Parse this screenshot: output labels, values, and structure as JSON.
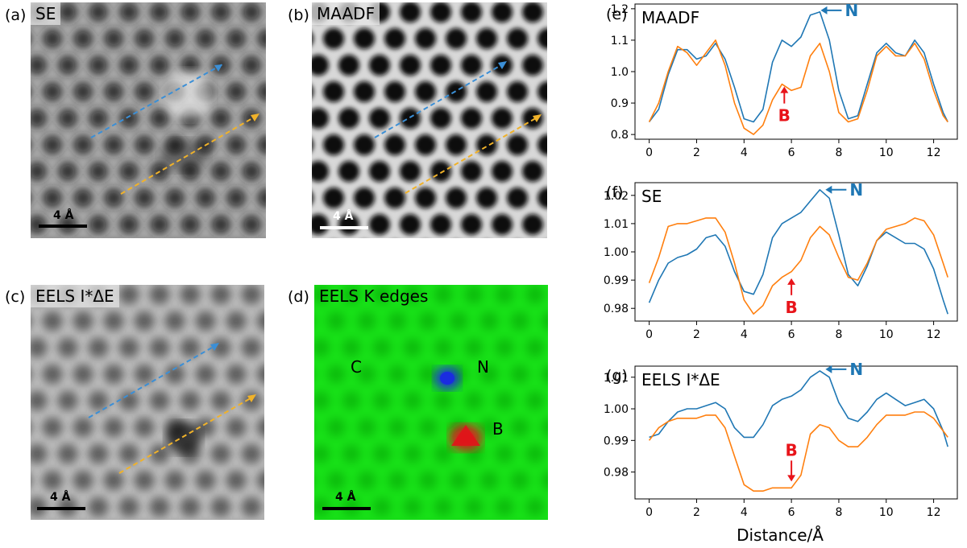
{
  "panels": {
    "a": {
      "letter": "(a)",
      "label": "SE",
      "scale": "4 Å"
    },
    "b": {
      "letter": "(b)",
      "label": "MAADF",
      "scale": "4 Å"
    },
    "c": {
      "letter": "(c)",
      "label": "EELS I*ΔE",
      "scale": "4 Å"
    },
    "d": {
      "letter": "(d)",
      "label": "EELS K edges",
      "scale": "4 Å",
      "elements": [
        "C",
        "N",
        "B"
      ]
    }
  },
  "colors": {
    "blue": "#1f77b4",
    "orange": "#ff7f0e",
    "annot_N": "#1f77b4",
    "annot_B": "#e8141a",
    "green": "#16e016",
    "dot_red": "#e0141a",
    "dot_blue": "#1a2ce0"
  },
  "chart_data": [
    {
      "type": "line",
      "letter": "(e)",
      "title": "MAADF",
      "xlim": [
        -0.6,
        13.0
      ],
      "ylim": [
        0.785,
        1.215
      ],
      "xticks": [
        0,
        2,
        4,
        6,
        8,
        10,
        12
      ],
      "yticks": [
        0.8,
        0.9,
        1.0,
        1.1,
        1.2
      ],
      "ytick_labels": [
        "0.8",
        "0.9",
        "1.0",
        "1.1",
        "1.2"
      ],
      "annotations": [
        {
          "text": "N",
          "color": "blue",
          "arrow": "left",
          "x": 7.1,
          "y": 1.195
        },
        {
          "text": "B",
          "color": "red",
          "arrow": "up",
          "x": 5.7,
          "y": 0.96
        }
      ],
      "series": [
        {
          "color": "blue",
          "x": [
            0,
            0.4,
            0.8,
            1.2,
            1.6,
            2.0,
            2.4,
            2.8,
            3.2,
            3.6,
            4.0,
            4.4,
            4.8,
            5.2,
            5.6,
            6.0,
            6.4,
            6.8,
            7.2,
            7.6,
            8.0,
            8.4,
            8.8,
            9.2,
            9.6,
            10.0,
            10.4,
            10.8,
            11.2,
            11.6,
            12.0,
            12.4,
            12.6
          ],
          "y": [
            0.84,
            0.88,
            0.99,
            1.07,
            1.07,
            1.04,
            1.05,
            1.09,
            1.04,
            0.95,
            0.85,
            0.84,
            0.88,
            1.03,
            1.1,
            1.08,
            1.11,
            1.18,
            1.19,
            1.1,
            0.94,
            0.85,
            0.86,
            0.96,
            1.06,
            1.09,
            1.06,
            1.05,
            1.1,
            1.06,
            0.96,
            0.87,
            0.84
          ]
        },
        {
          "color": "orange",
          "x": [
            0,
            0.4,
            0.8,
            1.2,
            1.6,
            2.0,
            2.4,
            2.8,
            3.2,
            3.6,
            4.0,
            4.4,
            4.8,
            5.2,
            5.6,
            6.0,
            6.4,
            6.8,
            7.2,
            7.6,
            8.0,
            8.4,
            8.8,
            9.2,
            9.6,
            10.0,
            10.4,
            10.8,
            11.2,
            11.6,
            12.0,
            12.4,
            12.6
          ],
          "y": [
            0.84,
            0.9,
            1.0,
            1.08,
            1.06,
            1.02,
            1.06,
            1.1,
            1.02,
            0.9,
            0.82,
            0.8,
            0.83,
            0.91,
            0.96,
            0.94,
            0.95,
            1.05,
            1.09,
            1.0,
            0.87,
            0.84,
            0.85,
            0.94,
            1.05,
            1.08,
            1.05,
            1.05,
            1.09,
            1.04,
            0.94,
            0.86,
            0.84
          ]
        }
      ]
    },
    {
      "type": "line",
      "letter": "(f)",
      "title": "SE",
      "xlim": [
        -0.6,
        13.0
      ],
      "ylim": [
        0.9755,
        1.0245
      ],
      "xticks": [
        0,
        2,
        4,
        6,
        8,
        10,
        12
      ],
      "yticks": [
        0.98,
        0.99,
        1.0,
        1.01,
        1.02
      ],
      "ytick_labels": [
        "0.98",
        "0.99",
        "1.00",
        "1.01",
        "1.02"
      ],
      "annotations": [
        {
          "text": "N",
          "color": "blue",
          "arrow": "left",
          "x": 7.3,
          "y": 1.022
        },
        {
          "text": "B",
          "color": "red",
          "arrow": "up",
          "x": 6.0,
          "y": 0.9915
        }
      ],
      "series": [
        {
          "color": "blue",
          "x": [
            0,
            0.4,
            0.8,
            1.2,
            1.6,
            2.0,
            2.4,
            2.8,
            3.2,
            3.6,
            4.0,
            4.4,
            4.8,
            5.2,
            5.6,
            6.0,
            6.4,
            6.8,
            7.2,
            7.6,
            8.0,
            8.4,
            8.8,
            9.2,
            9.6,
            10.0,
            10.4,
            10.8,
            11.2,
            11.6,
            12.0,
            12.4,
            12.6
          ],
          "y": [
            0.982,
            0.99,
            0.996,
            0.998,
            0.999,
            1.001,
            1.005,
            1.006,
            1.002,
            0.993,
            0.986,
            0.985,
            0.992,
            1.005,
            1.01,
            1.012,
            1.014,
            1.018,
            1.022,
            1.019,
            1.006,
            0.992,
            0.988,
            0.995,
            1.004,
            1.007,
            1.005,
            1.003,
            1.003,
            1.001,
            0.994,
            0.983,
            0.978
          ]
        },
        {
          "color": "orange",
          "x": [
            0,
            0.4,
            0.8,
            1.2,
            1.6,
            2.0,
            2.4,
            2.8,
            3.2,
            3.6,
            4.0,
            4.4,
            4.8,
            5.2,
            5.6,
            6.0,
            6.4,
            6.8,
            7.2,
            7.6,
            8.0,
            8.4,
            8.8,
            9.2,
            9.6,
            10.0,
            10.4,
            10.8,
            11.2,
            11.6,
            12.0,
            12.4,
            12.6
          ],
          "y": [
            0.989,
            0.998,
            1.009,
            1.01,
            1.01,
            1.011,
            1.012,
            1.012,
            1.007,
            0.996,
            0.983,
            0.978,
            0.981,
            0.988,
            0.991,
            0.993,
            0.997,
            1.005,
            1.009,
            1.006,
            0.998,
            0.991,
            0.99,
            0.996,
            1.004,
            1.008,
            1.009,
            1.01,
            1.012,
            1.011,
            1.006,
            0.996,
            0.991
          ]
        }
      ]
    },
    {
      "type": "line",
      "letter": "(g)",
      "title": "EELS I*ΔE",
      "xlabel": "Distance/Å",
      "xlim": [
        -0.6,
        13.0
      ],
      "ylim": [
        0.9715,
        1.0135
      ],
      "xticks": [
        0,
        2,
        4,
        6,
        8,
        10,
        12
      ],
      "yticks": [
        0.98,
        0.99,
        1.0,
        1.01
      ],
      "ytick_labels": [
        "0.98",
        "0.99",
        "1.00",
        "1.01"
      ],
      "annotations": [
        {
          "text": "N",
          "color": "blue",
          "arrow": "left",
          "x": 7.3,
          "y": 1.0125
        },
        {
          "text": "B",
          "color": "red",
          "arrow": "down",
          "x": 6.0,
          "y": 0.9765
        }
      ],
      "series": [
        {
          "color": "blue",
          "x": [
            0,
            0.4,
            0.8,
            1.2,
            1.6,
            2.0,
            2.4,
            2.8,
            3.2,
            3.6,
            4.0,
            4.4,
            4.8,
            5.2,
            5.6,
            6.0,
            6.4,
            6.8,
            7.2,
            7.6,
            8.0,
            8.4,
            8.8,
            9.2,
            9.6,
            10.0,
            10.4,
            10.8,
            11.2,
            11.6,
            12.0,
            12.4,
            12.6
          ],
          "y": [
            0.991,
            0.992,
            0.996,
            0.999,
            1.0,
            1.0,
            1.001,
            1.002,
            1.0,
            0.994,
            0.991,
            0.991,
            0.995,
            1.001,
            1.003,
            1.004,
            1.006,
            1.01,
            1.012,
            1.01,
            1.002,
            0.997,
            0.996,
            0.999,
            1.003,
            1.005,
            1.003,
            1.001,
            1.002,
            1.003,
            1.0,
            0.993,
            0.988
          ]
        },
        {
          "color": "orange",
          "x": [
            0,
            0.4,
            0.8,
            1.2,
            1.6,
            2.0,
            2.4,
            2.8,
            3.2,
            3.6,
            4.0,
            4.4,
            4.8,
            5.2,
            5.6,
            6.0,
            6.4,
            6.8,
            7.2,
            7.6,
            8.0,
            8.4,
            8.8,
            9.2,
            9.6,
            10.0,
            10.4,
            10.8,
            11.2,
            11.6,
            12.0,
            12.4,
            12.6
          ],
          "y": [
            0.99,
            0.994,
            0.996,
            0.997,
            0.997,
            0.997,
            0.998,
            0.998,
            0.994,
            0.985,
            0.976,
            0.974,
            0.974,
            0.975,
            0.975,
            0.975,
            0.979,
            0.992,
            0.995,
            0.994,
            0.99,
            0.988,
            0.988,
            0.991,
            0.995,
            0.998,
            0.998,
            0.998,
            0.999,
            0.999,
            0.997,
            0.993,
            0.991
          ]
        }
      ]
    }
  ]
}
